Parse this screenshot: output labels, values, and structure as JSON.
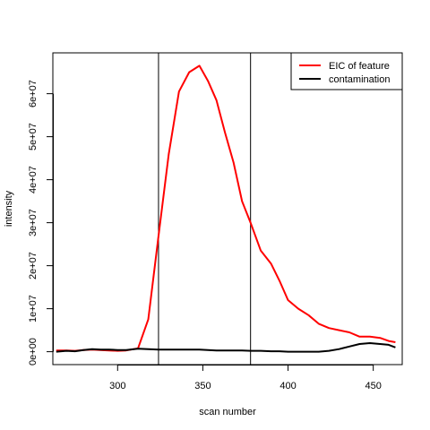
{
  "chart_data": {
    "type": "line",
    "title": "",
    "xlabel": "scan number",
    "ylabel": "intensity",
    "xlim": [
      262,
      467
    ],
    "ylim": [
      -3000000,
      69500000
    ],
    "x_ticks": [
      300,
      350,
      400,
      450
    ],
    "x_tick_labels": [
      "300",
      "350",
      "400",
      "450"
    ],
    "y_ticks": [
      0,
      10000000,
      20000000,
      30000000,
      40000000,
      50000000,
      60000000
    ],
    "y_tick_labels": [
      "0e+00",
      "1e+07",
      "2e+07",
      "3e+07",
      "4e+07",
      "5e+07",
      "6e+07"
    ],
    "grid": false,
    "legend_position": "top-right",
    "vlines": [
      324,
      378
    ],
    "series": [
      {
        "name": "EIC of feature",
        "color": "#ff0000",
        "x": [
          264,
          270,
          275,
          280,
          285,
          290,
          295,
          300,
          305,
          312,
          318,
          324,
          330,
          336,
          342,
          348,
          353,
          358,
          363,
          368,
          373,
          378,
          384,
          390,
          395,
          400,
          406,
          412,
          418,
          424,
          430,
          436,
          442,
          448,
          454,
          459,
          463
        ],
        "y": [
          300000,
          300000,
          200000,
          400000,
          500000,
          400000,
          300000,
          200000,
          300000,
          800000,
          7500000,
          27000000,
          46000000,
          60500000,
          65000000,
          66500000,
          63000000,
          58500000,
          51000000,
          44000000,
          35000000,
          30000000,
          23500000,
          20500000,
          16500000,
          12000000,
          10000000,
          8500000,
          6500000,
          5500000,
          5000000,
          4500000,
          3500000,
          3500000,
          3200000,
          2500000,
          2200000
        ],
        "width": 2
      },
      {
        "name": "contamination",
        "color": "#000000",
        "x": [
          264,
          270,
          275,
          280,
          285,
          290,
          295,
          300,
          305,
          312,
          318,
          324,
          330,
          336,
          342,
          348,
          353,
          358,
          363,
          368,
          373,
          378,
          384,
          390,
          395,
          400,
          406,
          412,
          418,
          424,
          430,
          436,
          442,
          448,
          454,
          459,
          463
        ],
        "y": [
          0,
          200000,
          100000,
          400000,
          600000,
          500000,
          500000,
          400000,
          400000,
          700000,
          600000,
          500000,
          500000,
          500000,
          500000,
          500000,
          400000,
          300000,
          300000,
          300000,
          300000,
          200000,
          200000,
          100000,
          100000,
          0,
          0,
          0,
          0,
          200000,
          600000,
          1200000,
          1800000,
          2000000,
          1800000,
          1600000,
          1000000
        ],
        "width": 2
      }
    ]
  }
}
